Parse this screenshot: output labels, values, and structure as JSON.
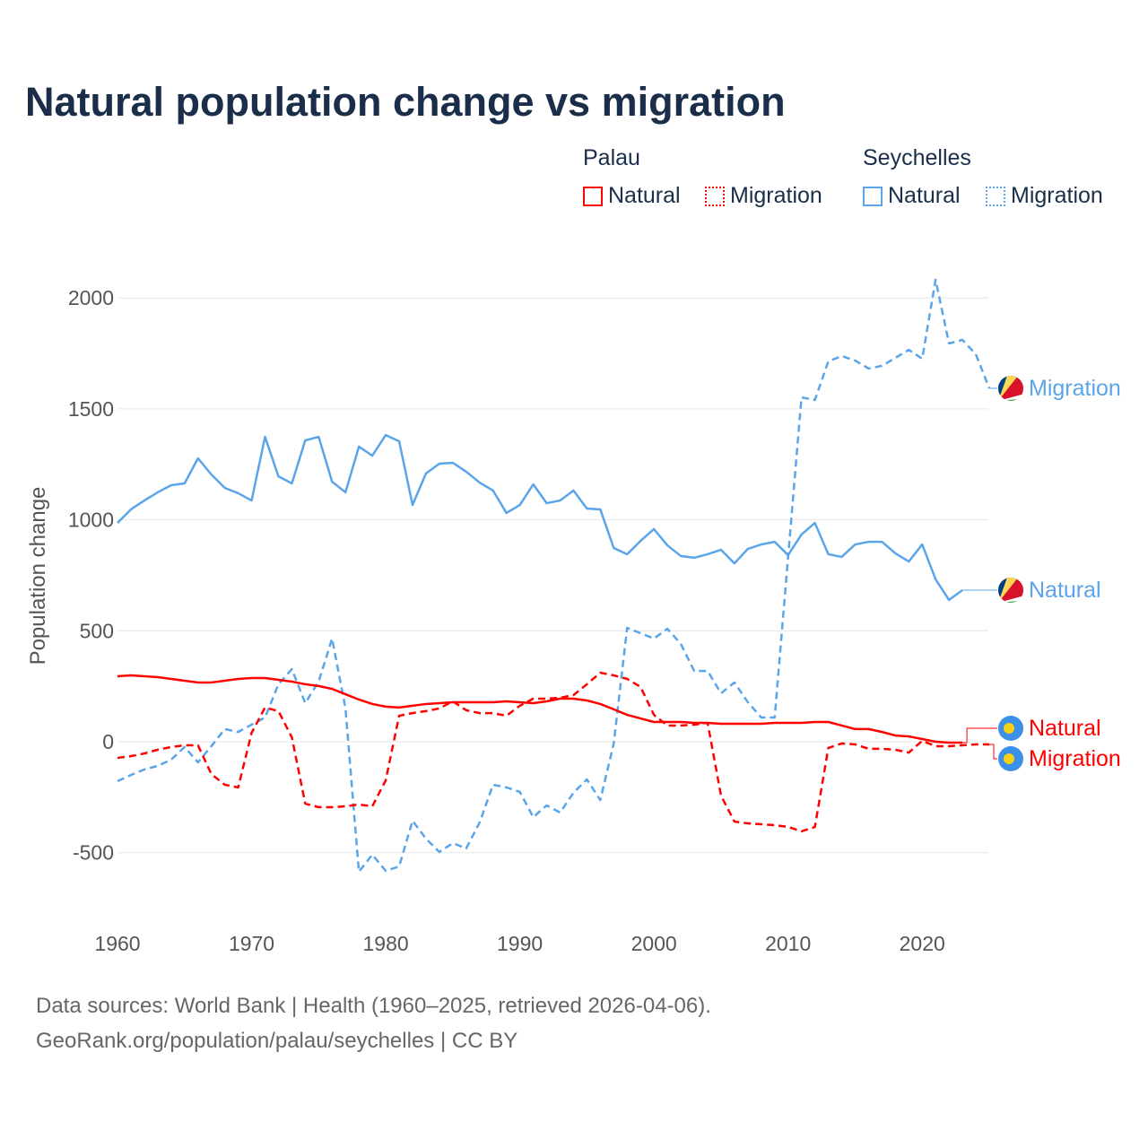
{
  "chart_data": {
    "type": "line",
    "title": "Natural population change vs migration",
    "xlabel": "",
    "ylabel": "Population change",
    "xlim": [
      1960,
      2025
    ],
    "ylim": [
      -700,
      2100
    ],
    "x_ticks": [
      1960,
      1970,
      1980,
      1990,
      2000,
      2010,
      2020
    ],
    "y_ticks": [
      2000,
      1500,
      1000,
      500,
      0,
      -500
    ],
    "grid": true,
    "legend": {
      "placement": "top-right",
      "groups": [
        {
          "name": "Palau",
          "items": [
            "Natural",
            "Migration"
          ]
        },
        {
          "name": "Seychelles",
          "items": [
            "Natural",
            "Migration"
          ]
        }
      ]
    },
    "series": [
      {
        "country": "Seychelles",
        "name": "Migration",
        "color": "#5aa5ea",
        "dashed": true,
        "label": "Migration",
        "start": 1960,
        "values": [
          -178,
          -150,
          -125,
          -109,
          -81,
          -24,
          -93,
          -20,
          57,
          44,
          77,
          109,
          259,
          327,
          174,
          271,
          465,
          150,
          -586,
          -509,
          -582,
          -562,
          -356,
          -437,
          -497,
          -457,
          -481,
          -364,
          -194,
          -206,
          -226,
          -340,
          -287,
          -319,
          -230,
          -170,
          -263,
          -8,
          513,
          489,
          465,
          509,
          441,
          319,
          319,
          218,
          267,
          178,
          109,
          109,
          830,
          1552,
          1540,
          1714,
          1738,
          1718,
          1682,
          1694,
          1730,
          1766,
          1726,
          2082,
          1795,
          1811,
          1746,
          1593
        ]
      },
      {
        "country": "Seychelles",
        "name": "Natural",
        "color": "#5aa5ea",
        "dashed": false,
        "label": "Natural",
        "start": 1960,
        "values": [
          986,
          1047,
          1087,
          1124,
          1156,
          1164,
          1277,
          1204,
          1144,
          1120,
          1087,
          1374,
          1196,
          1164,
          1358,
          1374,
          1172,
          1124,
          1330,
          1289,
          1382,
          1354,
          1067,
          1209,
          1253,
          1257,
          1217,
          1168,
          1132,
          1031,
          1067,
          1160,
          1075,
          1087,
          1132,
          1051,
          1047,
          873,
          845,
          905,
          958,
          885,
          837,
          829,
          845,
          865,
          804,
          869,
          889,
          901,
          841,
          934,
          986,
          845,
          833,
          889,
          901,
          901,
          849,
          812,
          889,
          732,
          639,
          683
        ]
      },
      {
        "country": "Palau",
        "name": "Natural",
        "color": "#ff0000",
        "dashed": false,
        "label": "Natural",
        "start": 1960,
        "values": [
          295,
          299,
          295,
          291,
          283,
          275,
          267,
          267,
          275,
          283,
          287,
          287,
          279,
          271,
          259,
          251,
          238,
          214,
          190,
          170,
          158,
          154,
          162,
          170,
          174,
          178,
          178,
          178,
          178,
          182,
          178,
          174,
          182,
          194,
          194,
          186,
          170,
          146,
          121,
          105,
          89,
          89,
          89,
          85,
          85,
          81,
          81,
          81,
          81,
          85,
          85,
          85,
          89,
          89,
          73,
          57,
          57,
          44,
          28,
          24,
          12,
          0,
          -4,
          -4
        ]
      },
      {
        "country": "Palau",
        "name": "Migration",
        "color": "#ff0000",
        "dashed": true,
        "label": "Migration",
        "start": 1960,
        "values": [
          -73,
          -65,
          -53,
          -36,
          -24,
          -16,
          -16,
          -146,
          -194,
          -206,
          40,
          154,
          138,
          20,
          -279,
          -295,
          -295,
          -291,
          -283,
          -291,
          -174,
          117,
          129,
          138,
          150,
          182,
          142,
          129,
          129,
          117,
          162,
          194,
          194,
          198,
          210,
          259,
          311,
          299,
          283,
          247,
          121,
          73,
          73,
          77,
          85,
          -243,
          -360,
          -368,
          -372,
          -376,
          -384,
          -404,
          -384,
          -28,
          -8,
          -12,
          -32,
          -32,
          -36,
          -49,
          4,
          -20,
          -20,
          -16,
          -12,
          -12
        ]
      }
    ]
  },
  "legend": {
    "palau": "Palau",
    "seychelles": "Seychelles",
    "palau_natural": "Natural",
    "palau_migration": "Migration",
    "seychelles_natural": "Natural",
    "seychelles_migration": "Migration"
  },
  "footer": {
    "line1": "Data sources: World Bank | Health (1960–2025, retrieved 2026-04-06).",
    "line2": "GeoRank.org/population/palau/seychelles | CC BY"
  },
  "colors": {
    "palau": "#ff0000",
    "seychelles": "#5aa5ea",
    "title": "#1a2e4a"
  }
}
